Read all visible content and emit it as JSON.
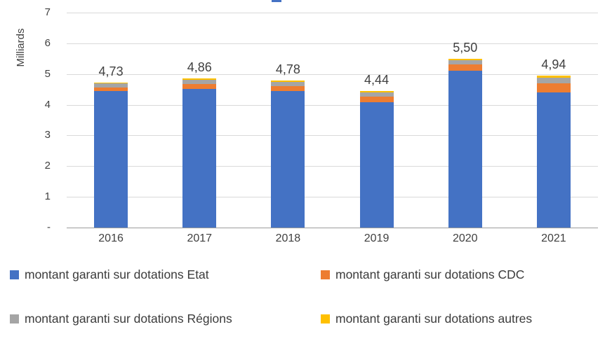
{
  "accent": "#4472C4",
  "chart_data": {
    "type": "bar",
    "stacked": true,
    "title": "",
    "ylabel": "Milliards",
    "categories": [
      "2016",
      "2017",
      "2018",
      "2019",
      "2020",
      "2021"
    ],
    "series": [
      {
        "name": "montant garanti sur dotations Etat",
        "color": "#4472C4",
        "values": [
          4.45,
          4.52,
          4.45,
          4.08,
          5.1,
          4.4
        ]
      },
      {
        "name": "montant garanti sur dotations CDC",
        "color": "#ED7D31",
        "values": [
          0.1,
          0.16,
          0.15,
          0.18,
          0.22,
          0.3
        ]
      },
      {
        "name": "montant garanti sur dotations Régions",
        "color": "#A5A5A5",
        "values": [
          0.14,
          0.14,
          0.14,
          0.14,
          0.13,
          0.17
        ]
      },
      {
        "name": "montant garanti sur dotations autres",
        "color": "#FFC000",
        "values": [
          0.04,
          0.04,
          0.04,
          0.04,
          0.05,
          0.07
        ]
      }
    ],
    "totals_labels": [
      "4,73",
      "4,86",
      "4,78",
      "4,44",
      "5,50",
      "4,94"
    ],
    "ylim": [
      0,
      7
    ],
    "yticks": [
      "7",
      "6",
      "5",
      "4",
      "3",
      "2",
      "1",
      "-"
    ],
    "grid": true,
    "legend_position": "bottom"
  }
}
